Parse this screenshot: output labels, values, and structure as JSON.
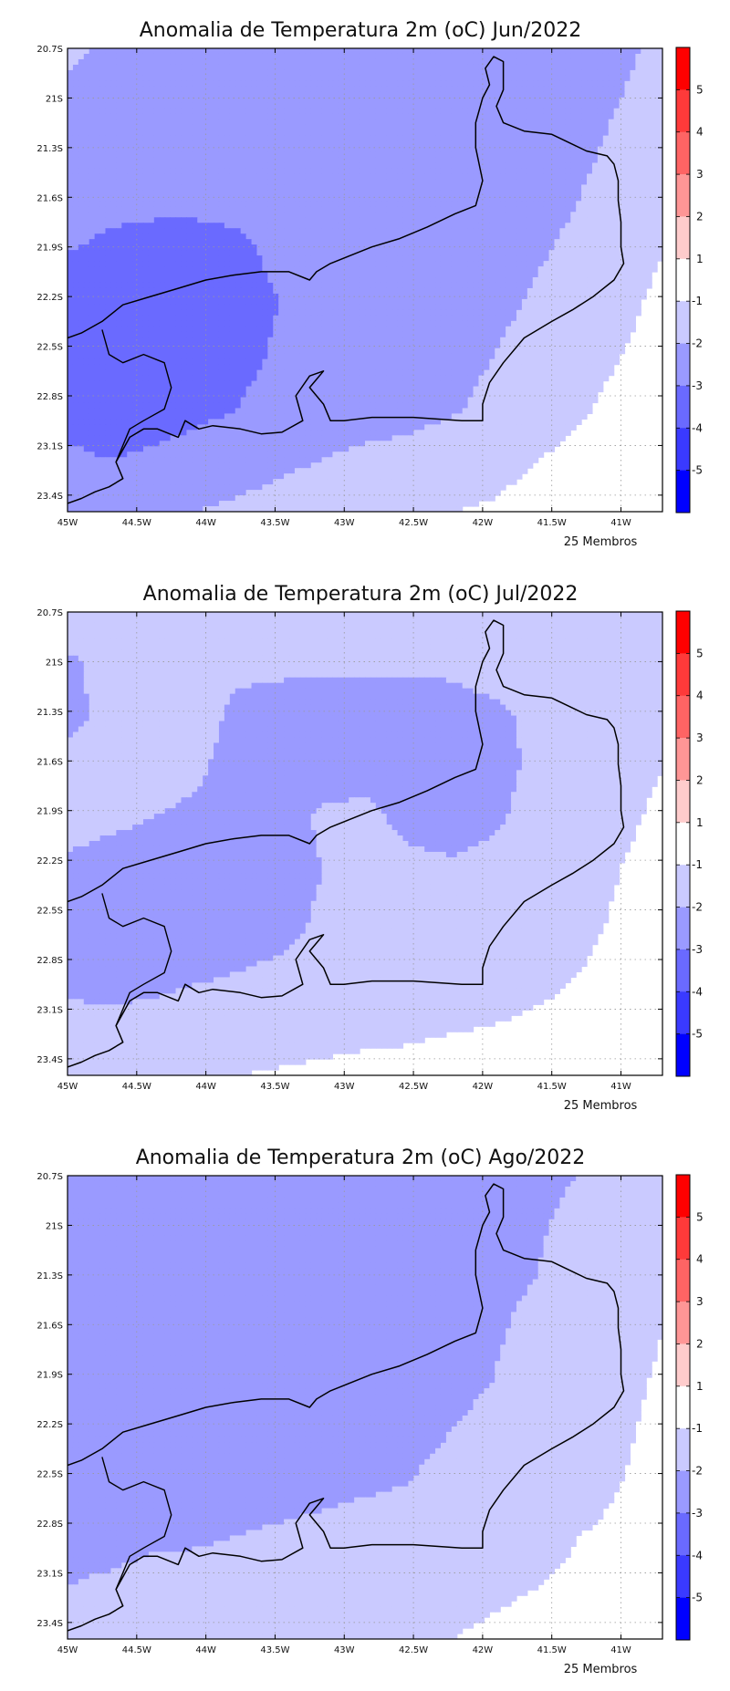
{
  "maps": [
    {
      "title": "Anomalia de Temperatura 2m (oC) Jun/2022",
      "footer": "25 Membros",
      "field": [
        [
          -1.8,
          -2.2,
          -2.3,
          -2.5,
          -2.6,
          -2.6,
          -2.6,
          -2.7,
          -2.8,
          -2.8,
          -2.8,
          -2.8,
          -2.5,
          -2.2,
          -1.8
        ],
        [
          -2.2,
          -2.4,
          -2.5,
          -2.6,
          -2.7,
          -2.7,
          -2.7,
          -2.8,
          -2.9,
          -2.8,
          -2.8,
          -2.7,
          -2.4,
          -2.0,
          -1.6
        ],
        [
          -2.6,
          -2.7,
          -2.8,
          -2.8,
          -2.8,
          -2.8,
          -2.8,
          -2.8,
          -2.9,
          -2.8,
          -2.7,
          -2.5,
          -2.2,
          -1.8,
          -1.4
        ],
        [
          -2.8,
          -2.9,
          -2.9,
          -2.9,
          -2.9,
          -2.8,
          -2.8,
          -2.8,
          -2.8,
          -2.7,
          -2.6,
          -2.3,
          -2.0,
          -1.6,
          -1.2
        ],
        [
          -3.0,
          -3.1,
          -3.2,
          -3.2,
          -3.1,
          -2.9,
          -2.8,
          -2.7,
          -2.7,
          -2.6,
          -2.4,
          -2.1,
          -1.8,
          -1.4,
          -1.0
        ],
        [
          -3.2,
          -3.3,
          -3.4,
          -3.4,
          -3.2,
          -3.0,
          -2.8,
          -2.6,
          -2.6,
          -2.5,
          -2.2,
          -1.9,
          -1.5,
          -1.2,
          -0.8
        ],
        [
          -3.3,
          -3.4,
          -3.5,
          -3.4,
          -3.2,
          -2.9,
          -2.7,
          -2.6,
          -2.5,
          -2.3,
          -2.0,
          -1.7,
          -1.3,
          -1.0,
          -0.7
        ],
        [
          -3.2,
          -3.3,
          -3.3,
          -3.2,
          -3.0,
          -2.7,
          -2.5,
          -2.4,
          -2.3,
          -2.1,
          -1.8,
          -1.4,
          -1.1,
          -0.8,
          -0.6
        ],
        [
          -2.9,
          -3.0,
          -2.9,
          -2.7,
          -2.5,
          -2.2,
          -2.0,
          -1.8,
          -1.7,
          -1.5,
          -1.3,
          -1.0,
          -0.8,
          -0.6,
          -0.5
        ],
        [
          -2.4,
          -2.3,
          -2.2,
          -2.0,
          -1.8,
          -1.6,
          -1.3,
          -1.2,
          -1.1,
          -1.0,
          -0.9,
          -0.7,
          -0.6,
          -0.5,
          -0.4
        ]
      ]
    },
    {
      "title": "Anomalia de Temperatura 2m (oC) Jul/2022",
      "footer": "25 Membros",
      "field": [
        [
          -1.6,
          -1.7,
          -1.8,
          -1.8,
          -1.8,
          -1.8,
          -1.8,
          -1.8,
          -1.8,
          -1.8,
          -1.8,
          -1.8,
          -1.6,
          -1.5,
          -1.3
        ],
        [
          -2.1,
          -1.8,
          -1.7,
          -1.8,
          -1.9,
          -1.9,
          -1.9,
          -1.9,
          -1.9,
          -1.9,
          -1.8,
          -1.8,
          -1.6,
          -1.4,
          -1.2
        ],
        [
          -2.2,
          -1.8,
          -1.7,
          -1.8,
          -2.1,
          -2.2,
          -2.3,
          -2.3,
          -2.3,
          -2.2,
          -2.1,
          -1.9,
          -1.6,
          -1.3,
          -1.1
        ],
        [
          -1.8,
          -1.7,
          -1.8,
          -1.9,
          -2.2,
          -2.3,
          -2.3,
          -2.3,
          -2.3,
          -2.3,
          -2.2,
          -1.9,
          -1.5,
          -1.2,
          -1.0
        ],
        [
          -1.8,
          -1.9,
          -2.0,
          -2.1,
          -2.2,
          -2.3,
          -1.9,
          -1.8,
          -2.2,
          -2.3,
          -2.1,
          -1.8,
          -1.4,
          -1.1,
          -0.9
        ],
        [
          -2.1,
          -2.2,
          -2.2,
          -2.2,
          -2.3,
          -2.3,
          -2.0,
          -1.7,
          -1.8,
          -1.9,
          -1.8,
          -1.6,
          -1.3,
          -1.0,
          -0.8
        ],
        [
          -2.2,
          -2.3,
          -2.3,
          -2.3,
          -2.3,
          -2.2,
          -1.9,
          -1.7,
          -1.7,
          -1.7,
          -1.6,
          -1.4,
          -1.2,
          -0.9,
          -0.7
        ],
        [
          -2.1,
          -2.2,
          -2.2,
          -2.1,
          -2.0,
          -1.9,
          -1.8,
          -1.7,
          -1.6,
          -1.5,
          -1.4,
          -1.2,
          -1.0,
          -0.8,
          -0.6
        ],
        [
          -1.9,
          -1.9,
          -1.8,
          -1.7,
          -1.6,
          -1.5,
          -1.4,
          -1.3,
          -1.2,
          -1.1,
          -1.0,
          -0.9,
          -0.8,
          -0.6,
          -0.5
        ],
        [
          -1.7,
          -1.6,
          -1.4,
          -1.2,
          -1.0,
          -0.9,
          -0.8,
          -0.7,
          -0.7,
          -0.6,
          -0.6,
          -0.5,
          -0.5,
          -0.4,
          -0.4
        ]
      ]
    },
    {
      "title": "Anomalia de Temperatura 2m (oC) Ago/2022",
      "footer": "25 Membros",
      "field": [
        [
          -2.5,
          -2.5,
          -2.5,
          -2.5,
          -2.5,
          -2.5,
          -2.5,
          -2.5,
          -2.5,
          -2.5,
          -2.4,
          -2.2,
          -2.0,
          -1.6,
          -1.3
        ],
        [
          -2.5,
          -2.5,
          -2.5,
          -2.5,
          -2.5,
          -2.5,
          -2.5,
          -2.5,
          -2.5,
          -2.4,
          -2.3,
          -2.1,
          -1.8,
          -1.5,
          -1.2
        ],
        [
          -2.5,
          -2.5,
          -2.5,
          -2.5,
          -2.5,
          -2.5,
          -2.5,
          -2.5,
          -2.4,
          -2.3,
          -2.2,
          -2.0,
          -1.7,
          -1.4,
          -1.1
        ],
        [
          -2.5,
          -2.5,
          -2.5,
          -2.5,
          -2.5,
          -2.5,
          -2.5,
          -2.4,
          -2.4,
          -2.3,
          -2.1,
          -1.8,
          -1.6,
          -1.3,
          -1.0
        ],
        [
          -2.5,
          -2.5,
          -2.5,
          -2.5,
          -2.5,
          -2.5,
          -2.4,
          -2.4,
          -2.3,
          -2.2,
          -2.0,
          -1.7,
          -1.4,
          -1.2,
          -0.9
        ],
        [
          -2.5,
          -2.5,
          -2.5,
          -2.5,
          -2.5,
          -2.4,
          -2.4,
          -2.3,
          -2.2,
          -2.0,
          -1.8,
          -1.6,
          -1.3,
          -1.1,
          -0.8
        ],
        [
          -2.4,
          -2.4,
          -2.4,
          -2.4,
          -2.3,
          -2.3,
          -2.2,
          -2.1,
          -2.0,
          -1.8,
          -1.6,
          -1.4,
          -1.2,
          -1.0,
          -0.8
        ],
        [
          -2.2,
          -2.2,
          -2.1,
          -2.1,
          -2.0,
          -1.9,
          -1.8,
          -1.7,
          -1.6,
          -1.5,
          -1.4,
          -1.2,
          -1.0,
          -0.9,
          -0.7
        ],
        [
          -2.0,
          -1.9,
          -1.8,
          -1.7,
          -1.6,
          -1.5,
          -1.4,
          -1.3,
          -1.2,
          -1.2,
          -1.1,
          -1.0,
          -0.9,
          -0.8,
          -0.6
        ],
        [
          -1.8,
          -1.7,
          -1.6,
          -1.5,
          -1.4,
          -1.3,
          -1.2,
          -1.1,
          -1.0,
          -1.0,
          -0.9,
          -0.8,
          -0.7,
          -0.7,
          -0.5
        ]
      ]
    }
  ],
  "axes": {
    "lon_range": [
      -45.0,
      -40.7
    ],
    "lat_range": [
      -23.5,
      -20.7
    ],
    "lon_ticks": [
      {
        "value": -45.0,
        "label": "45W"
      },
      {
        "value": -44.5,
        "label": "44.5W"
      },
      {
        "value": -44.0,
        "label": "44W"
      },
      {
        "value": -43.5,
        "label": "43.5W"
      },
      {
        "value": -43.0,
        "label": "43W"
      },
      {
        "value": -42.5,
        "label": "42.5W"
      },
      {
        "value": -42.0,
        "label": "42W"
      },
      {
        "value": -41.5,
        "label": "41.5W"
      },
      {
        "value": -41.0,
        "label": "41W"
      }
    ],
    "lat_ticks": [
      {
        "value": -20.7,
        "label": "20.7S"
      },
      {
        "value": -21.0,
        "label": "21S"
      },
      {
        "value": -21.3,
        "label": "21.3S"
      },
      {
        "value": -21.6,
        "label": "21.6S"
      },
      {
        "value": -21.9,
        "label": "21.9S"
      },
      {
        "value": -22.2,
        "label": "22.2S"
      },
      {
        "value": -22.5,
        "label": "22.5S"
      },
      {
        "value": -22.8,
        "label": "22.8S"
      },
      {
        "value": -23.1,
        "label": "23.1S"
      },
      {
        "value": -23.4,
        "label": "23.4S"
      }
    ],
    "grid": true
  },
  "colorbar": {
    "labels": [
      "5",
      "4",
      "3",
      "2",
      "1",
      "-1",
      "-2",
      "-3",
      "-4",
      "-5"
    ],
    "colors": [
      "#fe0000",
      "#fe3a3a",
      "#fe6464",
      "#fe9696",
      "#fecccc",
      "#ffffff",
      "#cacaff",
      "#9a9aff",
      "#6a6aff",
      "#3a3aff",
      "#0000ff"
    ]
  },
  "coastline": [
    [
      -45.0,
      -22.45
    ],
    [
      -44.9,
      -22.42
    ],
    [
      -44.75,
      -22.35
    ],
    [
      -44.6,
      -22.25
    ],
    [
      -44.4,
      -22.2
    ],
    [
      -44.2,
      -22.15
    ],
    [
      -44.0,
      -22.1
    ],
    [
      -43.8,
      -22.07
    ],
    [
      -43.6,
      -22.05
    ],
    [
      -43.4,
      -22.05
    ],
    [
      -43.25,
      -22.1
    ],
    [
      -43.2,
      -22.05
    ],
    [
      -43.1,
      -22.0
    ],
    [
      -42.95,
      -21.95
    ],
    [
      -42.8,
      -21.9
    ],
    [
      -42.6,
      -21.85
    ],
    [
      -42.4,
      -21.78
    ],
    [
      -42.2,
      -21.7
    ],
    [
      -42.05,
      -21.65
    ],
    [
      -42.0,
      -21.5
    ],
    [
      -42.05,
      -21.3
    ],
    [
      -42.05,
      -21.15
    ],
    [
      -42.0,
      -21.0
    ],
    [
      -41.95,
      -20.92
    ],
    [
      -41.98,
      -20.82
    ],
    [
      -41.92,
      -20.75
    ],
    [
      -41.85,
      -20.78
    ],
    [
      -41.85,
      -20.95
    ],
    [
      -41.9,
      -21.05
    ],
    [
      -41.85,
      -21.15
    ],
    [
      -41.7,
      -21.2
    ],
    [
      -41.5,
      -21.22
    ],
    [
      -41.35,
      -21.28
    ],
    [
      -41.25,
      -21.32
    ],
    [
      -41.1,
      -21.35
    ],
    [
      -41.05,
      -21.4
    ],
    [
      -41.02,
      -21.5
    ],
    [
      -41.02,
      -21.62
    ],
    [
      -41.0,
      -21.75
    ],
    [
      -41.0,
      -21.9
    ],
    [
      -40.98,
      -22.0
    ],
    [
      -41.05,
      -22.1
    ],
    [
      -41.2,
      -22.2
    ],
    [
      -41.35,
      -22.28
    ],
    [
      -41.5,
      -22.35
    ],
    [
      -41.7,
      -22.45
    ],
    [
      -41.85,
      -22.6
    ],
    [
      -41.95,
      -22.72
    ],
    [
      -42.0,
      -22.85
    ],
    [
      -42.0,
      -22.95
    ],
    [
      -42.15,
      -22.95
    ],
    [
      -42.5,
      -22.93
    ],
    [
      -42.8,
      -22.93
    ],
    [
      -43.0,
      -22.95
    ],
    [
      -43.1,
      -22.95
    ],
    [
      -43.15,
      -22.85
    ],
    [
      -43.25,
      -22.75
    ],
    [
      -43.2,
      -22.7
    ],
    [
      -43.15,
      -22.65
    ],
    [
      -43.25,
      -22.68
    ],
    [
      -43.35,
      -22.8
    ],
    [
      -43.3,
      -22.95
    ],
    [
      -43.45,
      -23.02
    ],
    [
      -43.6,
      -23.03
    ],
    [
      -43.75,
      -23.0
    ],
    [
      -43.95,
      -22.98
    ],
    [
      -44.05,
      -23.0
    ],
    [
      -44.15,
      -22.95
    ],
    [
      -44.2,
      -23.05
    ],
    [
      -44.35,
      -23.0
    ],
    [
      -44.45,
      -23.0
    ],
    [
      -44.55,
      -23.05
    ],
    [
      -44.65,
      -23.2
    ],
    [
      -44.6,
      -23.3
    ],
    [
      -44.7,
      -23.35
    ],
    [
      -44.8,
      -23.38
    ],
    [
      -44.9,
      -23.42
    ],
    [
      -45.0,
      -23.45
    ]
  ],
  "border": [
    [
      -44.75,
      -22.4
    ],
    [
      -44.7,
      -22.55
    ],
    [
      -44.6,
      -22.6
    ],
    [
      -44.45,
      -22.55
    ],
    [
      -44.3,
      -22.6
    ],
    [
      -44.25,
      -22.75
    ],
    [
      -44.3,
      -22.88
    ],
    [
      -44.45,
      -22.95
    ],
    [
      -44.55,
      -23.0
    ],
    [
      -44.6,
      -23.1
    ],
    [
      -44.65,
      -23.2
    ]
  ]
}
